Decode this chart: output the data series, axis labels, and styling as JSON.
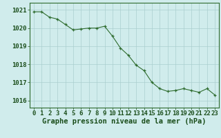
{
  "hours": [
    0,
    1,
    2,
    3,
    4,
    5,
    6,
    7,
    8,
    9,
    10,
    11,
    12,
    13,
    14,
    15,
    16,
    17,
    18,
    19,
    20,
    21,
    22,
    23
  ],
  "pressure": [
    1020.9,
    1020.9,
    1020.6,
    1020.5,
    1020.2,
    1019.9,
    1019.95,
    1020.0,
    1020.0,
    1020.1,
    1019.55,
    1018.9,
    1018.5,
    1017.95,
    1017.65,
    1017.0,
    1016.65,
    1016.5,
    1016.55,
    1016.65,
    1016.55,
    1016.45,
    1016.65,
    1016.3
  ],
  "line_color": "#2d6b2d",
  "marker": "+",
  "background_color": "#d0ecec",
  "grid_color": "#aacece",
  "axis_label_color": "#1a4d1a",
  "ylabel_ticks": [
    1016,
    1017,
    1018,
    1019,
    1020,
    1021
  ],
  "xlabel": "Graphe pression niveau de la mer (hPa)",
  "ylim": [
    1015.6,
    1021.4
  ],
  "xlim": [
    -0.5,
    23.5
  ],
  "tick_label_color": "#1a4d1a",
  "tick_fontsize": 6.5,
  "xlabel_fontsize": 7.5
}
